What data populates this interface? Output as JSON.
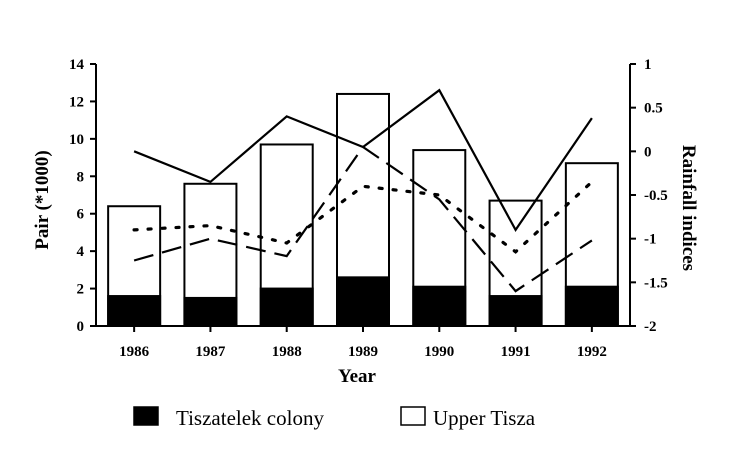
{
  "chart_data": {
    "type": "bar",
    "categories": [
      "1986",
      "1987",
      "1988",
      "1989",
      "1990",
      "1991",
      "1992"
    ],
    "xlabel": "Year",
    "ylabel": "Pair (*1000)",
    "ylabel_right": "Rainfall indices",
    "ylim": [
      0,
      14
    ],
    "ylim_right": [
      -2,
      1
    ],
    "yticks": [
      "0",
      "2",
      "4",
      "6",
      "8",
      "10",
      "12",
      "14"
    ],
    "yticks_right": [
      "-2",
      "-1.5",
      "-1",
      "-0.5",
      "0",
      "0.5",
      "1"
    ],
    "series": [
      {
        "name": "Tiszatelek colony",
        "kind": "bar",
        "fill": "#000000",
        "values": [
          1.6,
          1.5,
          2.0,
          2.6,
          2.1,
          1.6,
          2.1
        ]
      },
      {
        "name": "Upper Tisza",
        "kind": "bar",
        "fill": "#ffffff",
        "values": [
          6.4,
          7.6,
          9.7,
          12.4,
          9.4,
          6.7,
          8.7
        ]
      },
      {
        "kind": "line",
        "style": "solid",
        "axis": "right",
        "values": [
          0,
          -0.35,
          0.4,
          0.05,
          0.7,
          -0.9,
          0.38
        ]
      },
      {
        "kind": "line",
        "style": "dashed",
        "axis": "right",
        "values": [
          -1.25,
          -1,
          -1.2,
          0.05,
          -0.55,
          -1.6,
          -1.02
        ]
      },
      {
        "kind": "line",
        "style": "dotted",
        "axis": "right",
        "values": [
          -0.9,
          -0.85,
          -1.05,
          -0.4,
          -0.5,
          -1.15,
          -0.35
        ]
      }
    ],
    "legend": [
      "Tiszatelek colony",
      "Upper Tisza"
    ],
    "legend_position": "bottom"
  }
}
